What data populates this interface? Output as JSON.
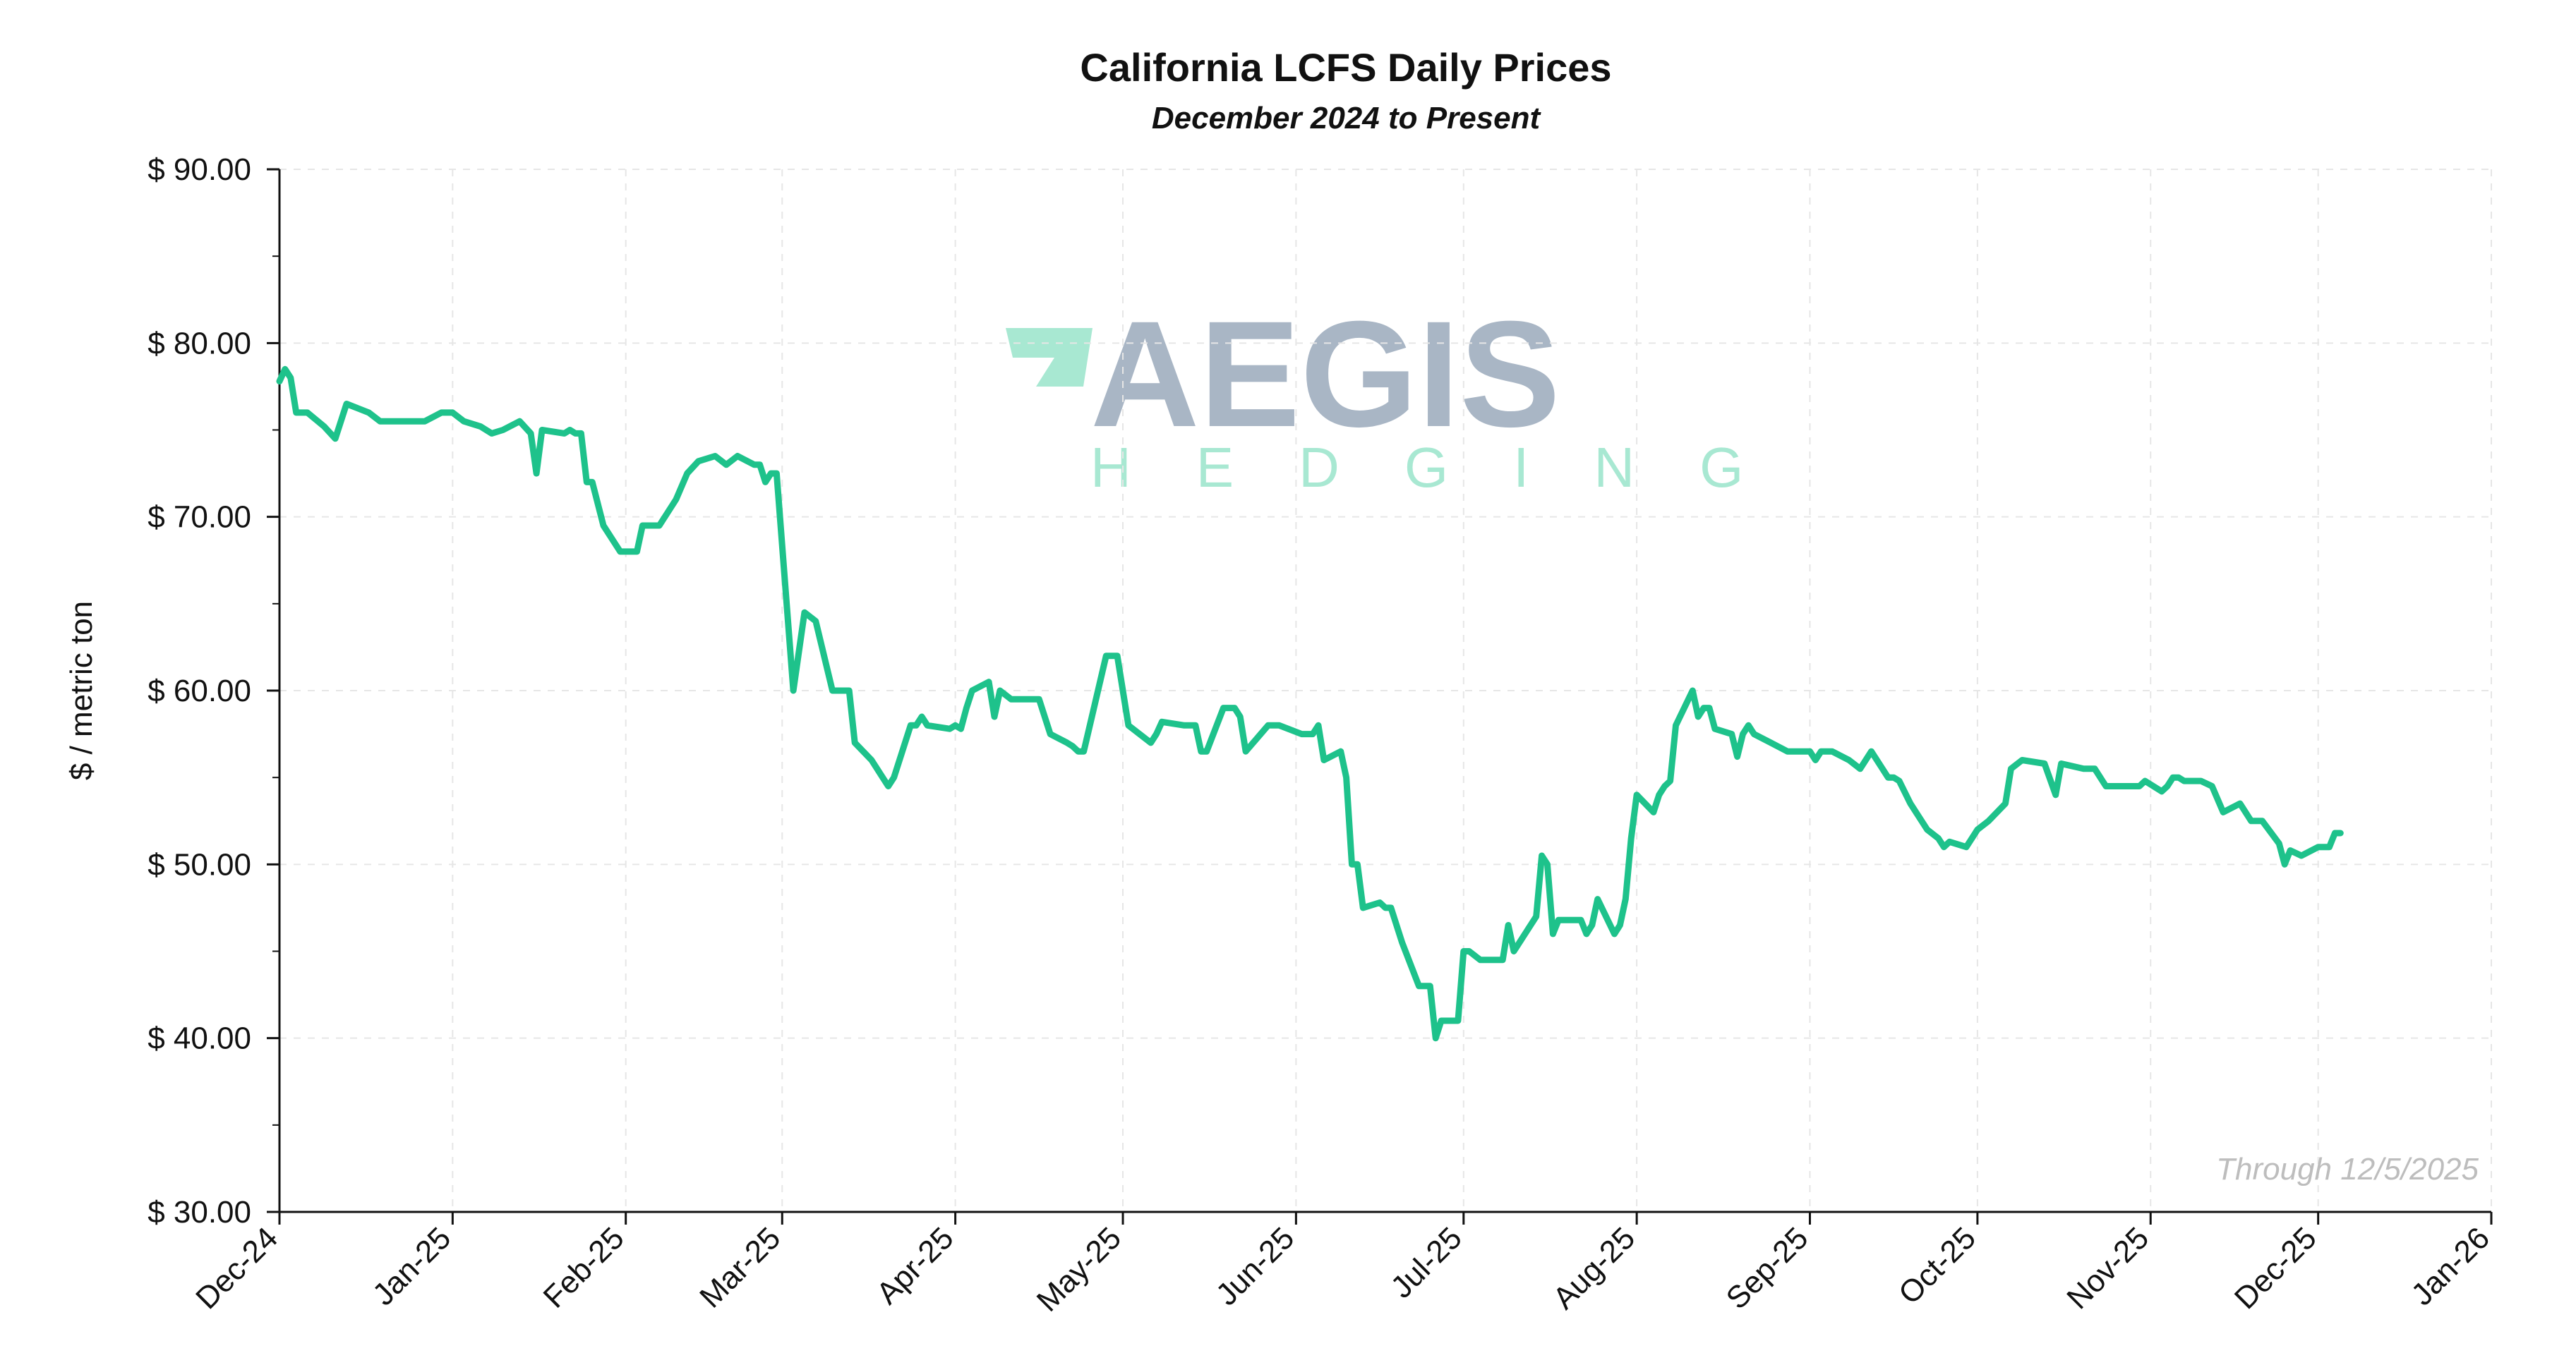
{
  "chart_data": {
    "type": "line",
    "title": "California LCFS Daily Prices",
    "subtitle": "December 2024 to Present",
    "xlabel": "",
    "ylabel": "$ / metric ton",
    "ylim": [
      30,
      90
    ],
    "xlim": [
      "2024-12-01",
      "2026-01-01"
    ],
    "y_ticks": [
      30,
      40,
      50,
      60,
      70,
      80,
      90
    ],
    "y_tick_labels": [
      "$ 30.00",
      "$ 40.00",
      "$ 50.00",
      "$ 60.00",
      "$ 70.00",
      "$ 80.00",
      "$ 90.00"
    ],
    "x_ticks": [
      "2024-12-01",
      "2025-01-01",
      "2025-02-01",
      "2025-03-01",
      "2025-04-01",
      "2025-05-01",
      "2025-06-01",
      "2025-07-01",
      "2025-08-01",
      "2025-09-01",
      "2025-10-01",
      "2025-11-01",
      "2025-12-01",
      "2026-01-01"
    ],
    "x_tick_labels": [
      "Dec-24",
      "Jan-25",
      "Feb-25",
      "Mar-25",
      "Apr-25",
      "May-25",
      "Jun-25",
      "Jul-25",
      "Aug-25",
      "Sep-25",
      "Oct-25",
      "Nov-25",
      "Dec-25",
      "Jan-26"
    ],
    "grid": true,
    "annotation": "Through 12/5/2025",
    "line_color": "#1ec28b",
    "series": [
      {
        "x": [
          "2024-12-01",
          "2024-12-02",
          "2024-12-03",
          "2024-12-04",
          "2024-12-06",
          "2024-12-09",
          "2024-12-11",
          "2024-12-13",
          "2024-12-17",
          "2024-12-19",
          "2024-12-20",
          "2024-12-24",
          "2024-12-27",
          "2024-12-30",
          "2025-01-01",
          "2025-01-03",
          "2025-01-06",
          "2025-01-08",
          "2025-01-10",
          "2025-01-13",
          "2025-01-15",
          "2025-01-16",
          "2025-01-17",
          "2025-01-21",
          "2025-01-22",
          "2025-01-23",
          "2025-01-24",
          "2025-01-25",
          "2025-01-26",
          "2025-01-28",
          "2025-01-31",
          "2025-02-03",
          "2025-02-04",
          "2025-02-05",
          "2025-02-07",
          "2025-02-10",
          "2025-02-12",
          "2025-02-14",
          "2025-02-17",
          "2025-02-19",
          "2025-02-21",
          "2025-02-24",
          "2025-02-25",
          "2025-02-26",
          "2025-02-27",
          "2025-02-28",
          "2025-03-03",
          "2025-03-05",
          "2025-03-07",
          "2025-03-10",
          "2025-03-11",
          "2025-03-12",
          "2025-03-13",
          "2025-03-14",
          "2025-03-17",
          "2025-03-19",
          "2025-03-20",
          "2025-03-21",
          "2025-03-24",
          "2025-03-25",
          "2025-03-26",
          "2025-03-27",
          "2025-03-31",
          "2025-04-01",
          "2025-04-02",
          "2025-04-03",
          "2025-04-04",
          "2025-04-07",
          "2025-04-08",
          "2025-04-09",
          "2025-04-11",
          "2025-04-14",
          "2025-04-16",
          "2025-04-18",
          "2025-04-21",
          "2025-04-22",
          "2025-04-23",
          "2025-04-24",
          "2025-04-28",
          "2025-04-29",
          "2025-04-30",
          "2025-05-01",
          "2025-05-02",
          "2025-05-06",
          "2025-05-07",
          "2025-05-08",
          "2025-05-12",
          "2025-05-13",
          "2025-05-14",
          "2025-05-15",
          "2025-05-16",
          "2025-05-19",
          "2025-05-20",
          "2025-05-21",
          "2025-05-22",
          "2025-05-23",
          "2025-05-27",
          "2025-05-28",
          "2025-05-29",
          "2025-06-02",
          "2025-06-03",
          "2025-06-04",
          "2025-06-05",
          "2025-06-06",
          "2025-06-09",
          "2025-06-10",
          "2025-06-11",
          "2025-06-12",
          "2025-06-13",
          "2025-06-16",
          "2025-06-17",
          "2025-06-18",
          "2025-06-20",
          "2025-06-23",
          "2025-06-24",
          "2025-06-25",
          "2025-06-26",
          "2025-06-27",
          "2025-06-30",
          "2025-07-01",
          "2025-07-02",
          "2025-07-04",
          "2025-07-07",
          "2025-07-08",
          "2025-07-09",
          "2025-07-10",
          "2025-07-11",
          "2025-07-14",
          "2025-07-15",
          "2025-07-16",
          "2025-07-17",
          "2025-07-18",
          "2025-07-21",
          "2025-07-22",
          "2025-07-23",
          "2025-07-24",
          "2025-07-25",
          "2025-07-28",
          "2025-07-29",
          "2025-07-30",
          "2025-07-31",
          "2025-08-01",
          "2025-08-04",
          "2025-08-05",
          "2025-08-06",
          "2025-08-07",
          "2025-08-08",
          "2025-08-11",
          "2025-08-12",
          "2025-08-13",
          "2025-08-14",
          "2025-08-15",
          "2025-08-18",
          "2025-08-19",
          "2025-08-20",
          "2025-08-21",
          "2025-08-22",
          "2025-08-25",
          "2025-08-28",
          "2025-09-01",
          "2025-09-02",
          "2025-09-03",
          "2025-09-04",
          "2025-09-05",
          "2025-09-08",
          "2025-09-10",
          "2025-09-12",
          "2025-09-15",
          "2025-09-16",
          "2025-09-17",
          "2025-09-19",
          "2025-09-22",
          "2025-09-24",
          "2025-09-25",
          "2025-09-26",
          "2025-09-29",
          "2025-09-30",
          "2025-10-01",
          "2025-10-03",
          "2025-10-06",
          "2025-10-07",
          "2025-10-09",
          "2025-10-13",
          "2025-10-15",
          "2025-10-16",
          "2025-10-20",
          "2025-10-22",
          "2025-10-24",
          "2025-10-28",
          "2025-10-30",
          "2025-10-31",
          "2025-11-03",
          "2025-11-04",
          "2025-11-05",
          "2025-11-06",
          "2025-11-07",
          "2025-11-10",
          "2025-11-12",
          "2025-11-14",
          "2025-11-17",
          "2025-11-18",
          "2025-11-19",
          "2025-11-20",
          "2025-11-21",
          "2025-11-24",
          "2025-11-25",
          "2025-11-26",
          "2025-11-28",
          "2025-12-01",
          "2025-12-03",
          "2025-12-04",
          "2025-12-05"
        ],
        "values": [
          77.8,
          78.5,
          78.0,
          76.0,
          76.0,
          75.2,
          74.5,
          76.5,
          76.0,
          75.5,
          75.5,
          75.5,
          75.5,
          76.0,
          76.0,
          75.5,
          75.2,
          74.8,
          75.0,
          75.5,
          74.8,
          72.5,
          75.0,
          74.8,
          75.0,
          74.8,
          74.8,
          72.0,
          72.0,
          69.5,
          68.0,
          68.0,
          69.5,
          69.5,
          69.5,
          71.0,
          72.5,
          73.2,
          73.5,
          73.0,
          73.5,
          73.0,
          73.0,
          72.0,
          72.5,
          72.5,
          60.0,
          64.5,
          64.0,
          60.0,
          60.0,
          60.0,
          60.0,
          57.0,
          56.0,
          55.0,
          54.5,
          55.0,
          58.0,
          58.0,
          58.5,
          58.0,
          57.8,
          58.0,
          57.8,
          59.0,
          60.0,
          60.5,
          58.5,
          60.0,
          59.5,
          59.5,
          59.5,
          57.5,
          57.0,
          56.8,
          56.5,
          56.5,
          62.0,
          62.0,
          62.0,
          60.0,
          58.0,
          57.0,
          57.5,
          58.2,
          58.0,
          58.0,
          58.0,
          56.5,
          56.5,
          59.0,
          59.0,
          59.0,
          58.5,
          56.5,
          58.0,
          58.0,
          58.0,
          57.5,
          57.5,
          57.5,
          58.0,
          56.0,
          56.5,
          55.0,
          50.0,
          50.0,
          47.5,
          47.8,
          47.5,
          47.5,
          45.5,
          43.0,
          43.0,
          43.0,
          40.0,
          41.0,
          41.0,
          45.0,
          45.0,
          44.5,
          44.5,
          44.5,
          46.5,
          45.0,
          45.5,
          47.0,
          50.5,
          50.0,
          46.0,
          46.8,
          46.8,
          46.8,
          46.0,
          46.5,
          48.0,
          46.0,
          46.5,
          48.0,
          51.5,
          54.0,
          53.0,
          54.0,
          54.5,
          54.8,
          58.0,
          60.0,
          58.5,
          59.0,
          59.0,
          57.8,
          57.5,
          56.2,
          57.5,
          58.0,
          57.5,
          57.0,
          56.5,
          56.5,
          56.0,
          56.5,
          56.5,
          56.5,
          56.0,
          55.5,
          56.5,
          55.0,
          55.0,
          54.8,
          53.5,
          52.0,
          51.5,
          51.0,
          51.3,
          51.0,
          51.5,
          52.0,
          52.5,
          53.5,
          55.5,
          56.0,
          55.8,
          54.0,
          55.8,
          55.5,
          55.5,
          54.5,
          54.5,
          54.5,
          54.8,
          54.2,
          54.5,
          55.0,
          55.0,
          54.8,
          54.8,
          54.5,
          53.0,
          53.5,
          53.0,
          52.5,
          52.5,
          52.5,
          51.2,
          50.0,
          50.8,
          50.5,
          51.0,
          51.0,
          51.8,
          51.8
        ]
      }
    ]
  },
  "logo": {
    "name": "AEGIS",
    "sub": "HEDGING",
    "name_color": "#a9b6c5",
    "sub_color": "#a8e8d2",
    "mark_color": "#a8e8d2"
  }
}
